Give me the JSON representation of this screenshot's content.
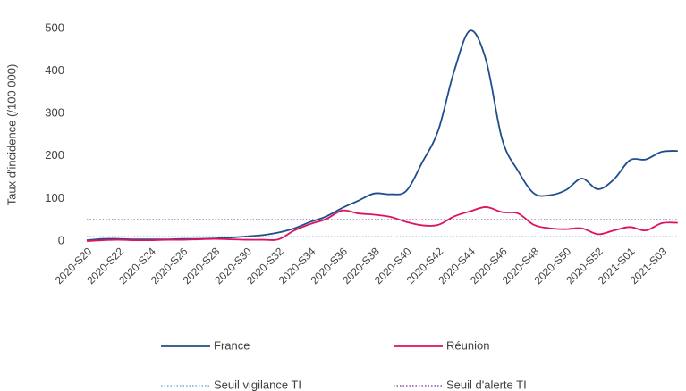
{
  "chart_data": {
    "type": "line",
    "y_label": "Taux d'incidence (/100 000)",
    "categories": [
      "2020-S20",
      null,
      "2020-S22",
      null,
      "2020-S24",
      null,
      "2020-S26",
      null,
      "2020-S28",
      null,
      "2020-S30",
      null,
      "2020-S32",
      null,
      "2020-S34",
      null,
      "2020-S36",
      null,
      "2020-S38",
      null,
      "2020-S40",
      null,
      "2020-S42",
      null,
      "2020-S44",
      null,
      "2020-S46",
      null,
      "2020-S48",
      null,
      "2020-S50",
      null,
      "2020-S52",
      null,
      "2021-S01",
      null,
      "2021-S03",
      null
    ],
    "series": [
      {
        "name": "France",
        "color": "#1f4e8c",
        "style": "solid",
        "values": [
          2,
          5,
          5,
          4,
          4,
          4,
          5,
          5,
          6,
          8,
          11,
          14,
          20,
          30,
          45,
          58,
          78,
          95,
          112,
          110,
          118,
          185,
          260,
          400,
          495,
          425,
          240,
          165,
          112,
          108,
          120,
          147,
          122,
          145,
          190,
          192,
          210,
          212
        ]
      },
      {
        "name": "Réunion",
        "color": "#e0115f",
        "style": "solid",
        "values": [
          0,
          2,
          3,
          2,
          2,
          3,
          3,
          4,
          5,
          4,
          3,
          3,
          4,
          25,
          40,
          52,
          72,
          65,
          62,
          57,
          45,
          37,
          38,
          58,
          70,
          80,
          68,
          65,
          38,
          30,
          28,
          30,
          16,
          25,
          33,
          25,
          42,
          43
        ]
      },
      {
        "name": "Seuil vigilance TI",
        "color": "#5b9bd5",
        "style": "dotted",
        "values": [
          10,
          10,
          10,
          10,
          10,
          10,
          10,
          10,
          10,
          10,
          10,
          10,
          10,
          10,
          10,
          10,
          10,
          10,
          10,
          10,
          10,
          10,
          10,
          10,
          10,
          10,
          10,
          10,
          10,
          10,
          10,
          10,
          10,
          10,
          10,
          10,
          10,
          10
        ]
      },
      {
        "name": "Seuil d'alerte TI",
        "color": "#7030a0",
        "style": "dotted",
        "values": [
          50,
          50,
          50,
          50,
          50,
          50,
          50,
          50,
          50,
          50,
          50,
          50,
          50,
          50,
          50,
          50,
          50,
          50,
          50,
          50,
          50,
          50,
          50,
          50,
          50,
          50,
          50,
          50,
          50,
          50,
          50,
          50,
          50,
          50,
          50,
          50,
          50,
          50
        ]
      }
    ],
    "ylim": [
      0,
      500
    ],
    "yticks": [
      0,
      100,
      200,
      300,
      400,
      500
    ],
    "grid": false
  }
}
